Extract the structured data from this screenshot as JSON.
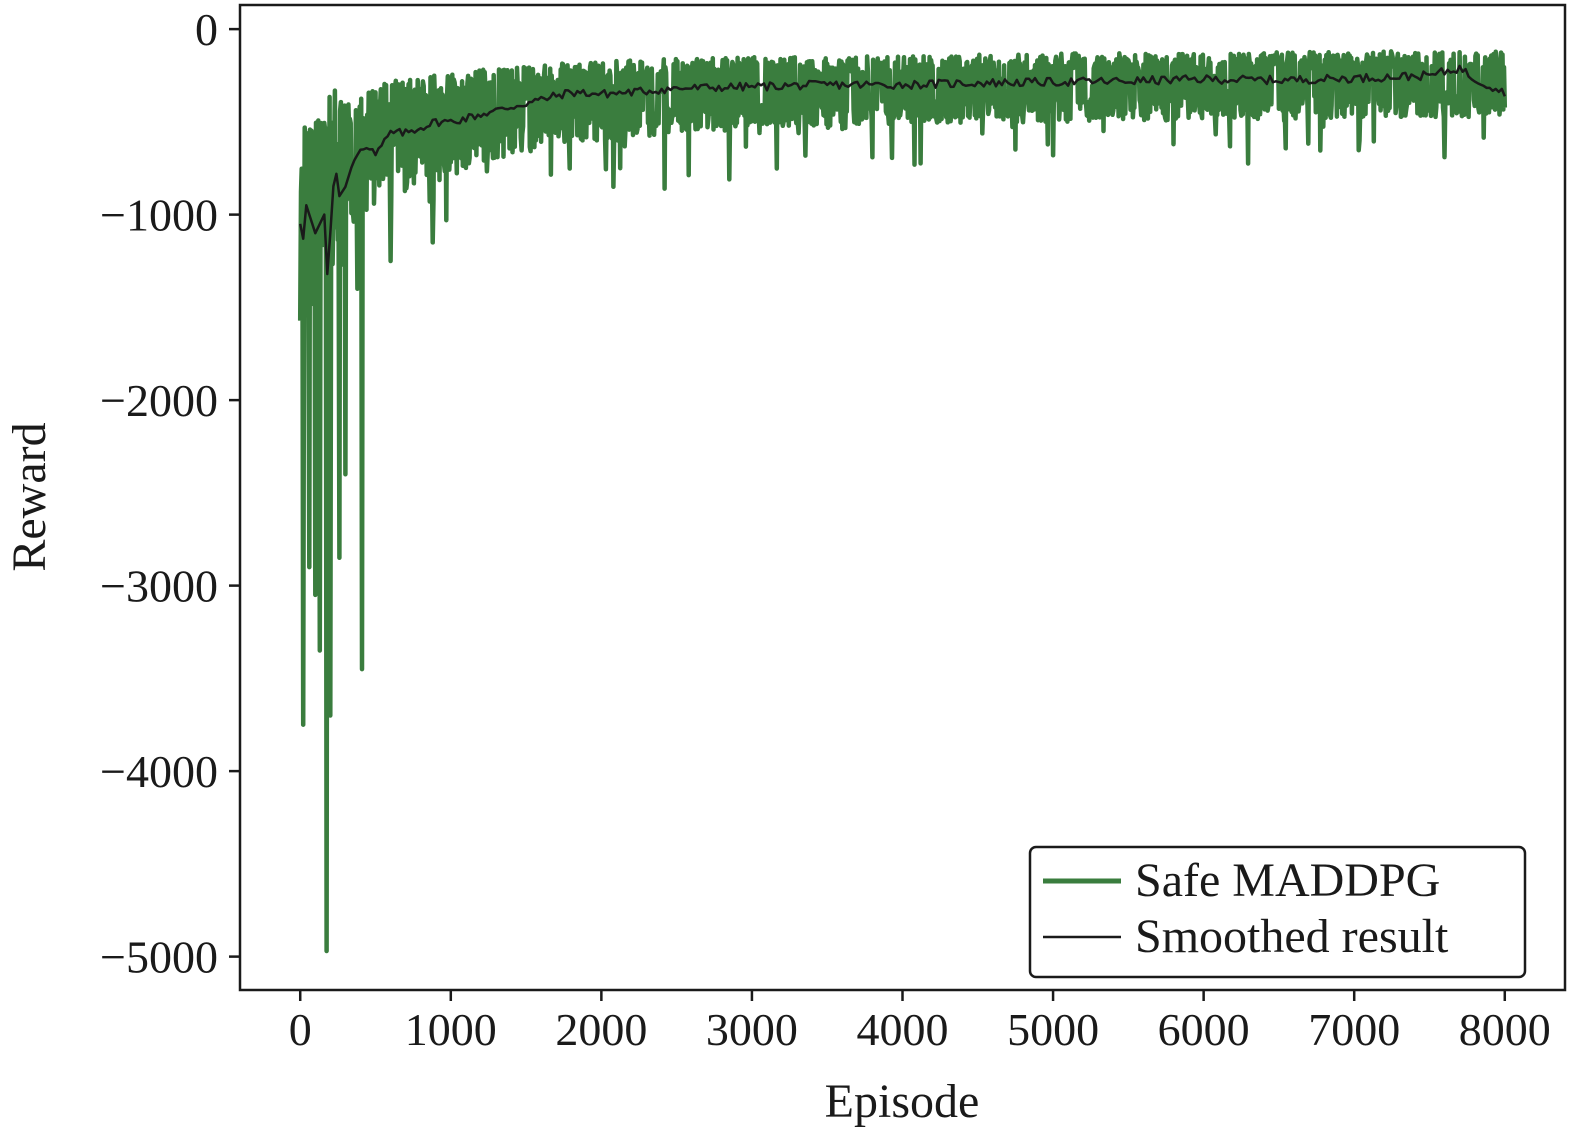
{
  "chart_data": {
    "type": "line",
    "title": "",
    "xlabel": "Episode",
    "ylabel": "Reward",
    "xlim": [
      -400,
      8400
    ],
    "ylim": [
      -5180,
      130
    ],
    "xticks": [
      0,
      1000,
      2000,
      3000,
      4000,
      5000,
      6000,
      7000,
      8000
    ],
    "xtick_labels": [
      "0",
      "1000",
      "2000",
      "3000",
      "4000",
      "5000",
      "6000",
      "7000",
      "8000"
    ],
    "yticks": [
      0,
      -1000,
      -2000,
      -3000,
      -4000,
      -5000
    ],
    "ytick_labels": [
      "0",
      "−1000",
      "−2000",
      "−3000",
      "−4000",
      "−5000"
    ],
    "grid": false,
    "legend_position": "lower-right",
    "series": [
      {
        "name": "Safe MADDPG",
        "color": "#3a7d3e",
        "style": "thick-noisy",
        "envelope": {
          "x": [
            0,
            100,
            200,
            300,
            400,
            500,
            600,
            800,
            1000,
            1200,
            1500,
            2000,
            2500,
            3000,
            3500,
            4000,
            5000,
            6000,
            7000,
            8000
          ],
          "upper": [
            -500,
            -400,
            -300,
            -400,
            -350,
            -300,
            -280,
            -250,
            -230,
            -220,
            -200,
            -170,
            -160,
            -150,
            -150,
            -140,
            -130,
            -130,
            -120,
            -120
          ],
          "lower": [
            -1700,
            -1500,
            -1300,
            -1100,
            -1000,
            -950,
            -900,
            -850,
            -800,
            -720,
            -650,
            -600,
            -560,
            -540,
            -520,
            -510,
            -500,
            -490,
            -480,
            -470
          ]
        },
        "dips": [
          {
            "x": 20,
            "y": -3750
          },
          {
            "x": 60,
            "y": -2900
          },
          {
            "x": 100,
            "y": -3050
          },
          {
            "x": 130,
            "y": -3350
          },
          {
            "x": 175,
            "y": -4970
          },
          {
            "x": 200,
            "y": -3700
          },
          {
            "x": 260,
            "y": -2850
          },
          {
            "x": 300,
            "y": -2400
          },
          {
            "x": 380,
            "y": -1400
          },
          {
            "x": 410,
            "y": -3450
          },
          {
            "x": 600,
            "y": -1250
          },
          {
            "x": 880,
            "y": -1150
          },
          {
            "x": 2080,
            "y": -850
          },
          {
            "x": 2420,
            "y": -860
          },
          {
            "x": 2850,
            "y": -810
          },
          {
            "x": 5000,
            "y": -680
          },
          {
            "x": 7600,
            "y": -690
          }
        ]
      },
      {
        "name": "Smoothed result",
        "color": "#1a1a1a",
        "x": [
          0,
          20,
          40,
          60,
          80,
          100,
          130,
          160,
          180,
          200,
          230,
          260,
          300,
          350,
          400,
          450,
          500,
          600,
          700,
          800,
          900,
          1000,
          1200,
          1400,
          1600,
          1800,
          2000,
          2200,
          2500,
          3000,
          3500,
          4000,
          4500,
          5000,
          5500,
          6000,
          6500,
          7000,
          7500,
          7700,
          7800,
          8000
        ],
        "y": [
          -1050,
          -1130,
          -950,
          -1000,
          -1050,
          -1100,
          -1050,
          -1000,
          -1320,
          -1100,
          -720,
          -900,
          -850,
          -720,
          -650,
          -620,
          -680,
          -560,
          -560,
          -530,
          -500,
          -500,
          -460,
          -420,
          -380,
          -340,
          -350,
          -340,
          -320,
          -310,
          -300,
          -300,
          -290,
          -285,
          -280,
          -270,
          -275,
          -265,
          -250,
          -210,
          -270,
          -340
        ]
      }
    ]
  }
}
